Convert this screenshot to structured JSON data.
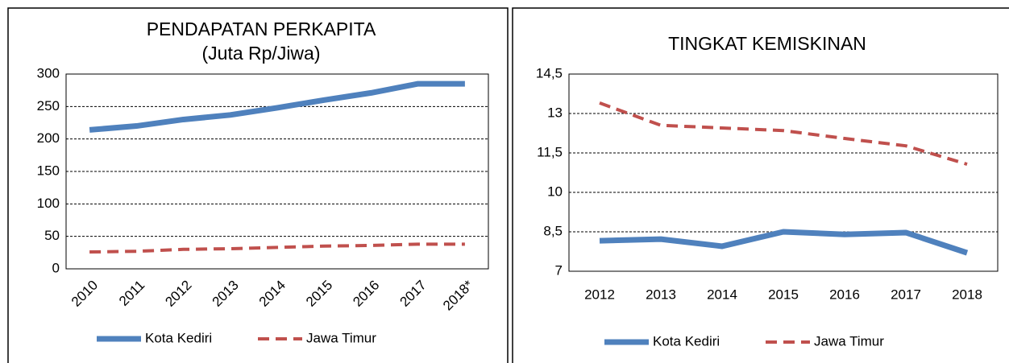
{
  "chart_data": [
    {
      "type": "line",
      "title": "PENDAPATAN PERKAPITA",
      "subtitle": "(Juta Rp/Jiwa)",
      "categories": [
        "2010",
        "2011",
        "2012",
        "2013",
        "2014",
        "2015",
        "2016",
        "2017",
        "2018*"
      ],
      "series": [
        {
          "name": "Kota Kediri",
          "color": "#4f81bd",
          "line_style": "solid",
          "values": [
            214,
            220,
            230,
            237,
            248,
            260,
            271,
            285,
            285
          ]
        },
        {
          "name": "Jawa Timur",
          "color": "#c0504d",
          "line_style": "dashed",
          "values": [
            26,
            27,
            30,
            31,
            33,
            35,
            36,
            38,
            38
          ]
        }
      ],
      "ylim": [
        0,
        300
      ],
      "yticks": [
        0,
        50,
        100,
        150,
        200,
        250,
        300
      ],
      "grid": true,
      "legend": "bottom"
    },
    {
      "type": "line",
      "title": "TINGKAT KEMISKINAN",
      "categories": [
        "2012",
        "2013",
        "2014",
        "2015",
        "2016",
        "2017",
        "2018"
      ],
      "series": [
        {
          "name": "Kota Kediri",
          "color": "#4f81bd",
          "line_style": "solid",
          "values": [
            8.16,
            8.22,
            7.95,
            8.5,
            8.4,
            8.47,
            7.7
          ]
        },
        {
          "name": "Jawa Timur",
          "color": "#c0504d",
          "line_style": "dashed",
          "values": [
            13.4,
            12.55,
            12.45,
            12.35,
            12.05,
            11.77,
            11.07
          ]
        }
      ],
      "ylim": [
        7,
        14.5
      ],
      "yticks": [
        7,
        {
          "value": 8.5,
          "label": "8,5"
        },
        10,
        {
          "value": 11.5,
          "label": "11,5"
        },
        13,
        {
          "value": 14.5,
          "label": "14,5"
        }
      ],
      "grid": true,
      "legend": "bottom"
    }
  ]
}
